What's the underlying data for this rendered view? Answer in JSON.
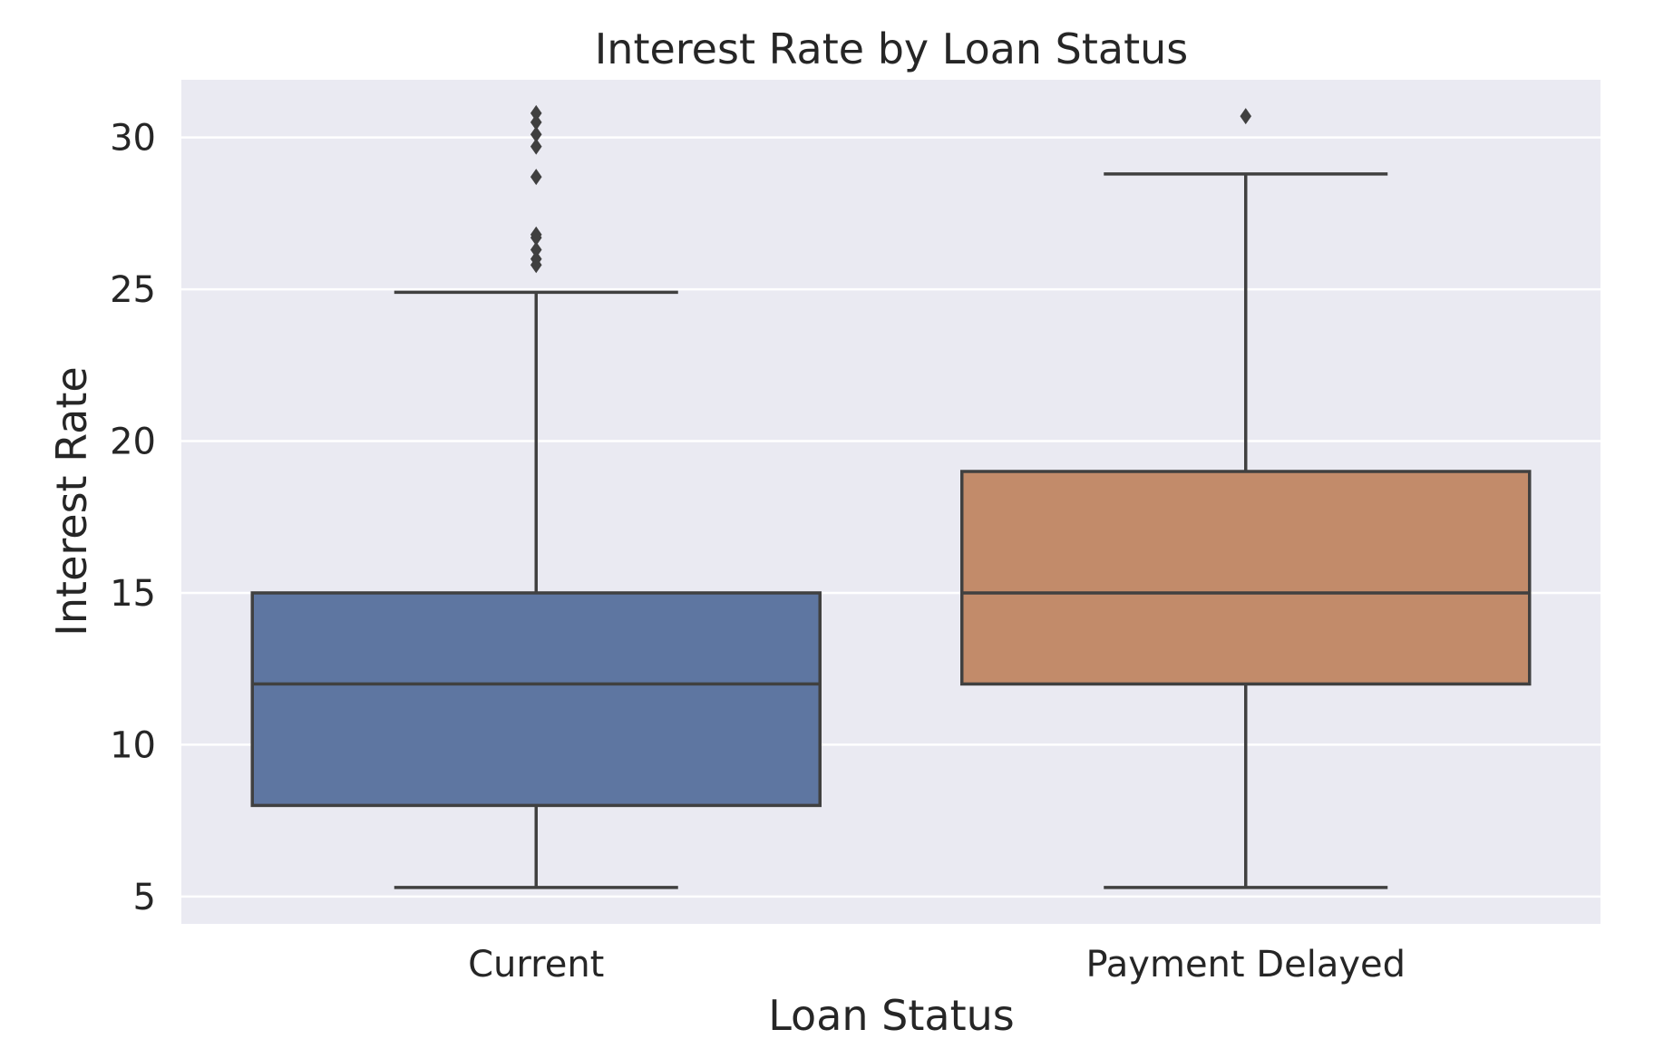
{
  "chart_data": {
    "type": "box",
    "title": "Interest Rate by Loan Status",
    "xlabel": "Loan Status",
    "ylabel": "Interest Rate",
    "ylim": [
      4.1,
      31.9
    ],
    "yticks": [
      5,
      10,
      15,
      20,
      25,
      30
    ],
    "grid": true,
    "categories": [
      "Current",
      "Payment Delayed"
    ],
    "series": [
      {
        "category": "Current",
        "color": "#5e76a1",
        "whisker_low": 5.3,
        "q1": 8.0,
        "median": 12.0,
        "q3": 15.0,
        "whisker_high": 24.9,
        "outliers": [
          25.8,
          26.0,
          26.3,
          26.7,
          26.8,
          28.7,
          29.7,
          30.1,
          30.5,
          30.8
        ]
      },
      {
        "category": "Payment Delayed",
        "color": "#c28b6a",
        "whisker_low": 5.3,
        "q1": 12.0,
        "median": 15.0,
        "q3": 19.0,
        "whisker_high": 28.8,
        "outliers": [
          30.7
        ]
      }
    ]
  }
}
